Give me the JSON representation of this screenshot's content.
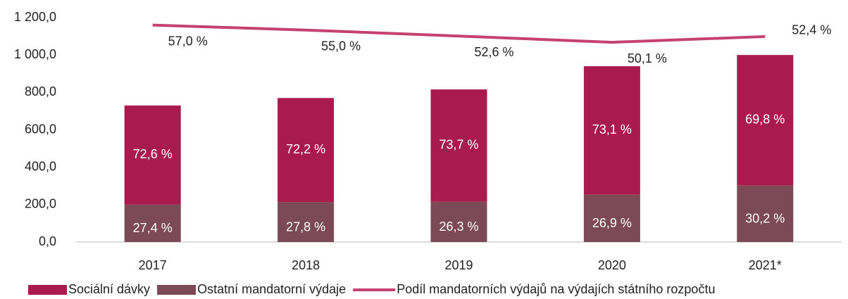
{
  "chart_data": {
    "type": "bar",
    "stacked": true,
    "categories": [
      "2017",
      "2018",
      "2019",
      "2020",
      "2021*"
    ],
    "series": [
      {
        "name": "Ostatní mandatorní výdaje",
        "color": "#7b4a56",
        "values": [
          200,
          214,
          215,
          253,
          302
        ],
        "share_labels": [
          "27,4 %",
          "27,8 %",
          "26,3 %",
          "26,9 %",
          "30,2 %"
        ]
      },
      {
        "name": "Sociální dávky",
        "color": "#a91b4c",
        "values": [
          530,
          556,
          601,
          687,
          698
        ],
        "share_labels": [
          "72,6 %",
          "72,2 %",
          "73,7 %",
          "73,1 %",
          "69,8 %"
        ]
      },
      {
        "name": "Podíl mandatorních výdajů na výdajích státního rozpočtu",
        "color": "#c5416f",
        "type": "line",
        "axis": "y2",
        "values": [
          57.0,
          55.0,
          52.6,
          50.1,
          52.4
        ],
        "value_labels": [
          "57,0 %",
          "55,0 %",
          "52,6 %",
          "50,1 %",
          "52,4 %"
        ]
      }
    ],
    "legend_order": [
      1,
      0,
      2
    ],
    "ylim": [
      0,
      1200
    ],
    "yticks": [
      {
        "value": 0,
        "label": "0,0"
      },
      {
        "value": 200,
        "label": "200,0"
      },
      {
        "value": 400,
        "label": "400,0"
      },
      {
        "value": 600,
        "label": "600,0"
      },
      {
        "value": 800,
        "label": "800,0"
      },
      {
        "value": 1000,
        "label": "1 000,0"
      },
      {
        "value": 1200,
        "label": "1 200,0"
      }
    ],
    "y2lim": [
      -30,
      60
    ],
    "grid": false,
    "legend": "bottom"
  }
}
